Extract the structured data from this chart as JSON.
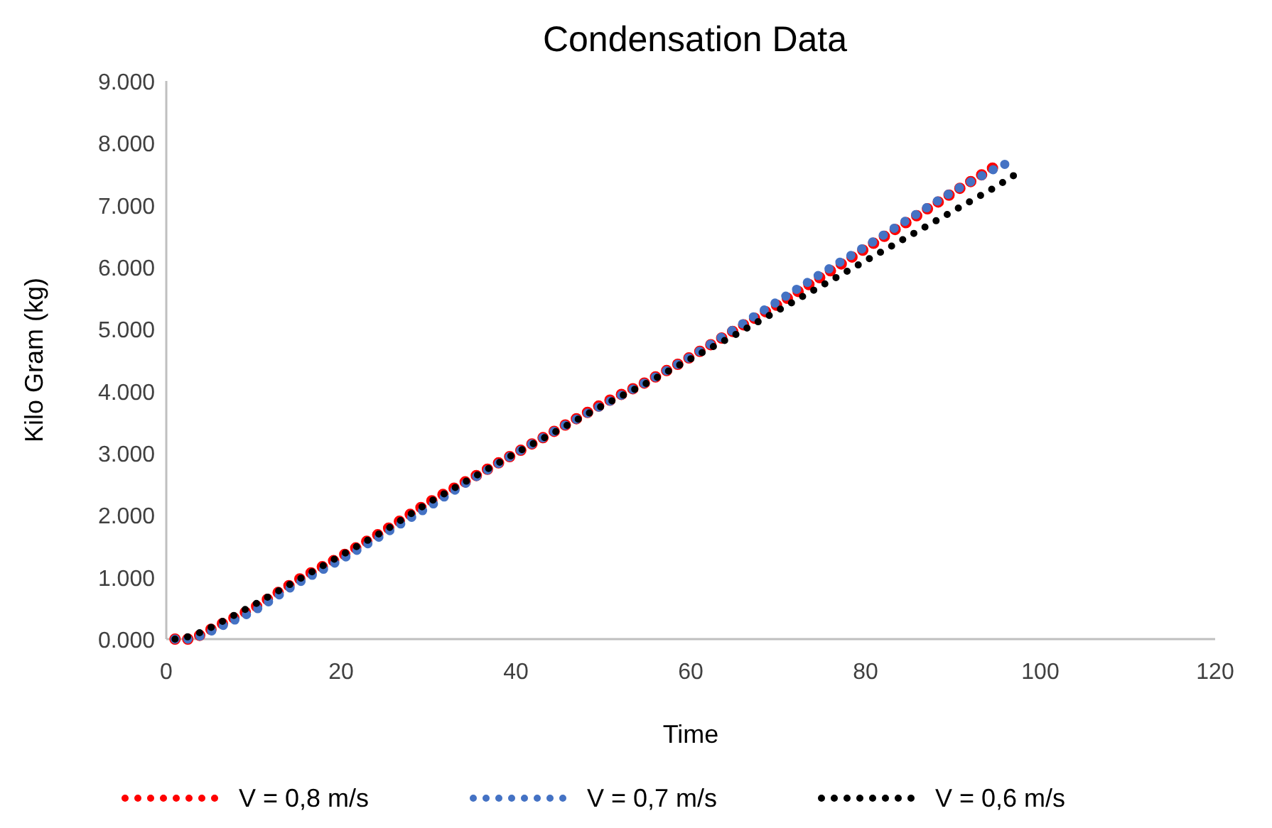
{
  "chart_data": {
    "type": "line",
    "title": "Condensation Data",
    "xlabel": "Time",
    "ylabel": "Kilo Gram (kg)",
    "xlim": [
      0,
      120
    ],
    "xticks": [
      0,
      20,
      40,
      60,
      80,
      100,
      120
    ],
    "ylim": [
      0,
      9000
    ],
    "yticks": [
      {
        "value": 0,
        "label": "0.000"
      },
      {
        "value": 1000,
        "label": "1.000"
      },
      {
        "value": 2000,
        "label": "2.000"
      },
      {
        "value": 3000,
        "label": "3.000"
      },
      {
        "value": 4000,
        "label": "4.000"
      },
      {
        "value": 5000,
        "label": "5.000"
      },
      {
        "value": 6000,
        "label": "6.000"
      },
      {
        "value": 7000,
        "label": "7.000"
      },
      {
        "value": 8000,
        "label": "8.000"
      },
      {
        "value": 9000,
        "label": "9.000"
      }
    ],
    "grid": false,
    "legend": "bottom",
    "line_style": "dotted",
    "marker": "none",
    "series": [
      {
        "name": "V = 0,8 m/s",
        "color": "#ff0000",
        "x": [
          1,
          3,
          5,
          10,
          15,
          20,
          25,
          30,
          35,
          40,
          45,
          50,
          55,
          60,
          65,
          70,
          75,
          80,
          85,
          90,
          95.5
        ],
        "values": [
          0,
          0,
          150,
          500,
          950,
          1330,
          1750,
          2200,
          2600,
          3000,
          3400,
          3800,
          4150,
          4550,
          4980,
          5400,
          5850,
          6300,
          6750,
          7200,
          7680
        ]
      },
      {
        "name": "V = 0,7 m/s",
        "color": "#4472c4",
        "x": [
          1,
          3,
          5,
          10,
          15,
          20,
          25,
          30,
          35,
          40,
          45,
          50,
          55,
          60,
          65,
          70,
          75,
          80,
          85,
          90,
          95,
          97
        ],
        "values": [
          0,
          0,
          120,
          450,
          900,
          1280,
          1700,
          2130,
          2580,
          3000,
          3400,
          3780,
          4150,
          4550,
          5000,
          5450,
          5900,
          6330,
          6780,
          7220,
          7600,
          7720
        ]
      },
      {
        "name": "V = 0,6 m/s",
        "color": "#000000",
        "x": [
          1,
          3,
          5,
          10,
          15,
          20,
          25,
          30,
          35,
          40,
          45,
          50,
          55,
          60,
          65,
          70,
          75,
          80,
          85,
          90,
          95,
          97
        ],
        "values": [
          0,
          50,
          180,
          550,
          950,
          1350,
          1750,
          2200,
          2600,
          3000,
          3380,
          3770,
          4130,
          4520,
          4900,
          5300,
          5700,
          6100,
          6500,
          6900,
          7300,
          7480
        ]
      }
    ]
  }
}
